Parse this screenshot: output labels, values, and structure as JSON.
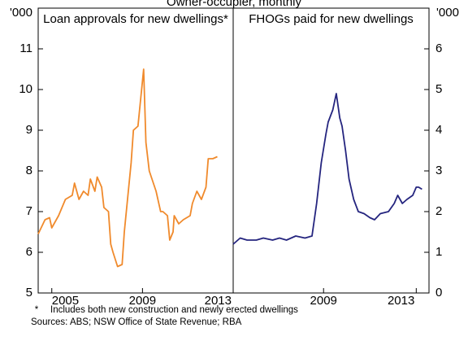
{
  "subtitle": "Owner-occupier, monthly",
  "note_marker": "*",
  "note": "Includes both new construction and newly erected dwellings",
  "sources": "Sources: ABS; NSW Office of State Revenue; RBA",
  "chart_data": [
    {
      "type": "line",
      "title": "Loan approvals for new dwellings*",
      "y_label": "'000",
      "axis": "y",
      "color": "#f08a2c",
      "x": [
        2004.4,
        2004.7,
        2004.9,
        2005.0,
        2005.3,
        2005.6,
        2005.9,
        2006.0,
        2006.2,
        2006.4,
        2006.6,
        2006.7,
        2006.9,
        2007.0,
        2007.2,
        2007.3,
        2007.5,
        2007.6,
        2007.7,
        2007.9,
        2008.1,
        2008.2,
        2008.5,
        2008.6,
        2008.8,
        2009.05,
        2009.15,
        2009.3,
        2009.6,
        2009.8,
        2009.9,
        2010.1,
        2010.2,
        2010.35,
        2010.4,
        2010.6,
        2010.8,
        2011.1,
        2011.2,
        2011.4,
        2011.6,
        2011.8,
        2011.9,
        2012.1,
        2012.3
      ],
      "values": [
        6.45,
        6.8,
        6.85,
        6.6,
        6.9,
        7.3,
        7.4,
        7.7,
        7.3,
        7.5,
        7.4,
        7.8,
        7.5,
        7.85,
        7.6,
        7.1,
        7.0,
        6.2,
        6.0,
        5.65,
        5.7,
        6.5,
        8.2,
        9.0,
        9.1,
        10.5,
        8.7,
        8.0,
        7.5,
        7.0,
        7.0,
        6.9,
        6.3,
        6.5,
        6.9,
        6.7,
        6.8,
        6.9,
        7.2,
        7.5,
        7.3,
        7.6,
        8.3,
        8.3,
        8.35
      ],
      "xlim": [
        2004.4,
        2013.0
      ],
      "xticks": [
        2005,
        2009,
        2013
      ],
      "ylim": [
        5,
        12
      ],
      "yticks": [
        5,
        6,
        7,
        8,
        9,
        10,
        11
      ]
    },
    {
      "type": "line",
      "title": "FHOGs paid for new dwellings",
      "y_label": "'000",
      "axis": "y2",
      "color": "#25257f",
      "x": [
        2005.1,
        2005.4,
        2005.7,
        2006.1,
        2006.4,
        2006.8,
        2007.1,
        2007.4,
        2007.8,
        2008.2,
        2008.5,
        2008.7,
        2008.9,
        2009.1,
        2009.2,
        2009.4,
        2009.55,
        2009.7,
        2009.8,
        2009.95,
        2010.1,
        2010.3,
        2010.5,
        2010.75,
        2011.0,
        2011.2,
        2011.45,
        2011.8,
        2012.05,
        2012.2,
        2012.4,
        2012.6,
        2012.85,
        2013.0,
        2013.1,
        2013.25
      ],
      "values": [
        1.2,
        1.35,
        1.3,
        1.3,
        1.35,
        1.3,
        1.35,
        1.3,
        1.4,
        1.35,
        1.4,
        2.2,
        3.2,
        3.9,
        4.2,
        4.5,
        4.9,
        4.3,
        4.1,
        3.5,
        2.8,
        2.3,
        2.0,
        1.95,
        1.85,
        1.8,
        1.95,
        2.0,
        2.2,
        2.4,
        2.2,
        2.3,
        2.4,
        2.6,
        2.6,
        2.55
      ],
      "xlim": [
        2005.1,
        2013.55
      ],
      "xticks": [
        2009,
        2013
      ],
      "y2lim": [
        0,
        7
      ],
      "y2ticks": [
        0,
        1,
        2,
        3,
        4,
        5,
        6
      ]
    }
  ]
}
